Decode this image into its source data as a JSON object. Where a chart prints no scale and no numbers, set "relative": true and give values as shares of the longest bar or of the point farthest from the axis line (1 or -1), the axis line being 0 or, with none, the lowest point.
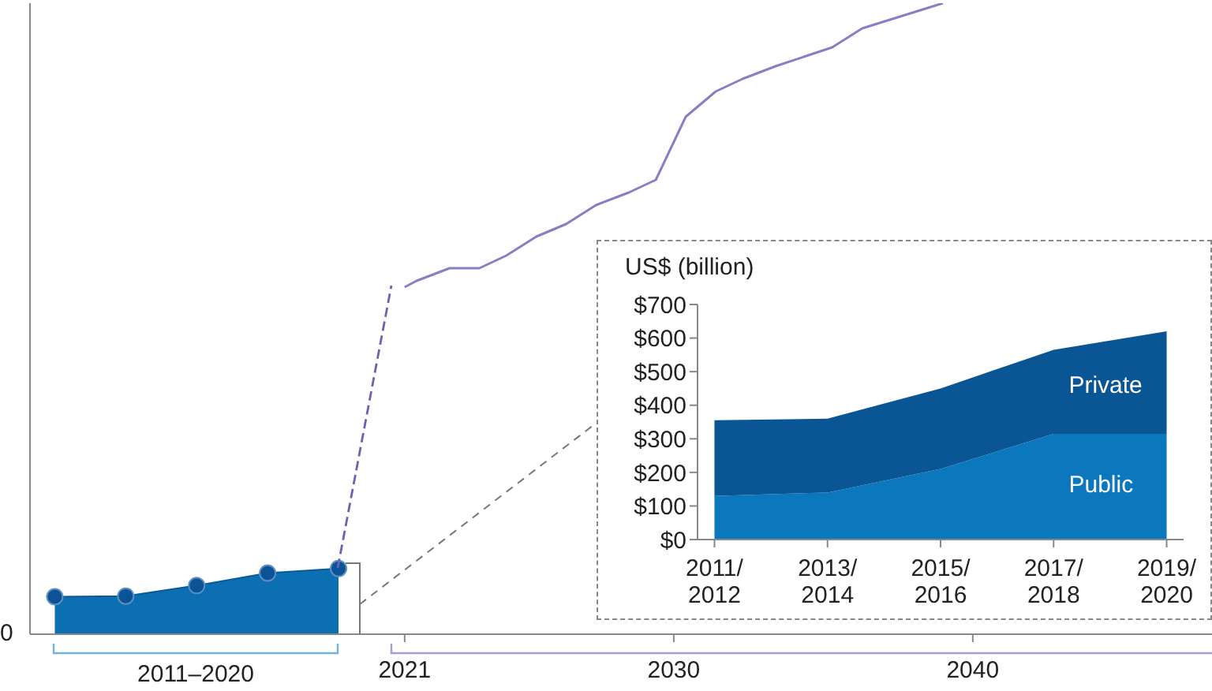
{
  "chart_data": [
    {
      "type": "area",
      "relative": true,
      "xlabel": "2011–2020",
      "annotations": [
        "0"
      ],
      "categories": [
        null,
        null,
        null,
        null,
        null
      ],
      "values": [
        0.57,
        0.58,
        0.74,
        0.93,
        1
      ],
      "color": "#0b6fb2",
      "marker": "circle",
      "tick_labels": false
    },
    {
      "type": "line",
      "relative": true,
      "x": [
        2021,
        2021.4,
        2022.5,
        2023.5,
        2024.4,
        2025.4,
        2026.4,
        2027.4,
        2028.5,
        2029.4,
        2030.4,
        2031.4,
        2032.3,
        2033.4,
        2035.3,
        2036.3,
        2039
      ],
      "values": [
        0.55,
        0.56,
        0.58,
        0.58,
        0.6,
        0.63,
        0.65,
        0.68,
        0.7,
        0.72,
        0.82,
        0.86,
        0.88,
        0.9,
        0.93,
        0.96,
        1
      ],
      "color": "#8e7cc3",
      "xlim": [
        2019.5,
        2048
      ],
      "xticks": [
        2021,
        2030,
        2040
      ],
      "tick_labels": "x"
    },
    {
      "type": "area",
      "stacked": true,
      "ylabel": "US$ (billion)",
      "categories": [
        "2011/2012",
        "2013/2014",
        "2015/2016",
        "2017/2018",
        "2019/2020"
      ],
      "series": [
        {
          "name": "Public",
          "color": "#0b77bd",
          "values": [
            130,
            140,
            210,
            315,
            315
          ]
        },
        {
          "name": "Private",
          "color": "#0a5594",
          "values": [
            225,
            220,
            240,
            250,
            305
          ]
        }
      ],
      "ylim": [
        0,
        700
      ],
      "yticks": [
        {
          "value": 0,
          "label": "$0"
        },
        {
          "value": 100,
          "label": "$100"
        },
        {
          "value": 200,
          "label": "$200"
        },
        {
          "value": 300,
          "label": "$300"
        },
        {
          "value": 400,
          "label": "$400"
        },
        {
          "value": 500,
          "label": "$500"
        },
        {
          "value": 600,
          "label": "$600"
        },
        {
          "value": 700,
          "label": "$700"
        }
      ]
    }
  ]
}
